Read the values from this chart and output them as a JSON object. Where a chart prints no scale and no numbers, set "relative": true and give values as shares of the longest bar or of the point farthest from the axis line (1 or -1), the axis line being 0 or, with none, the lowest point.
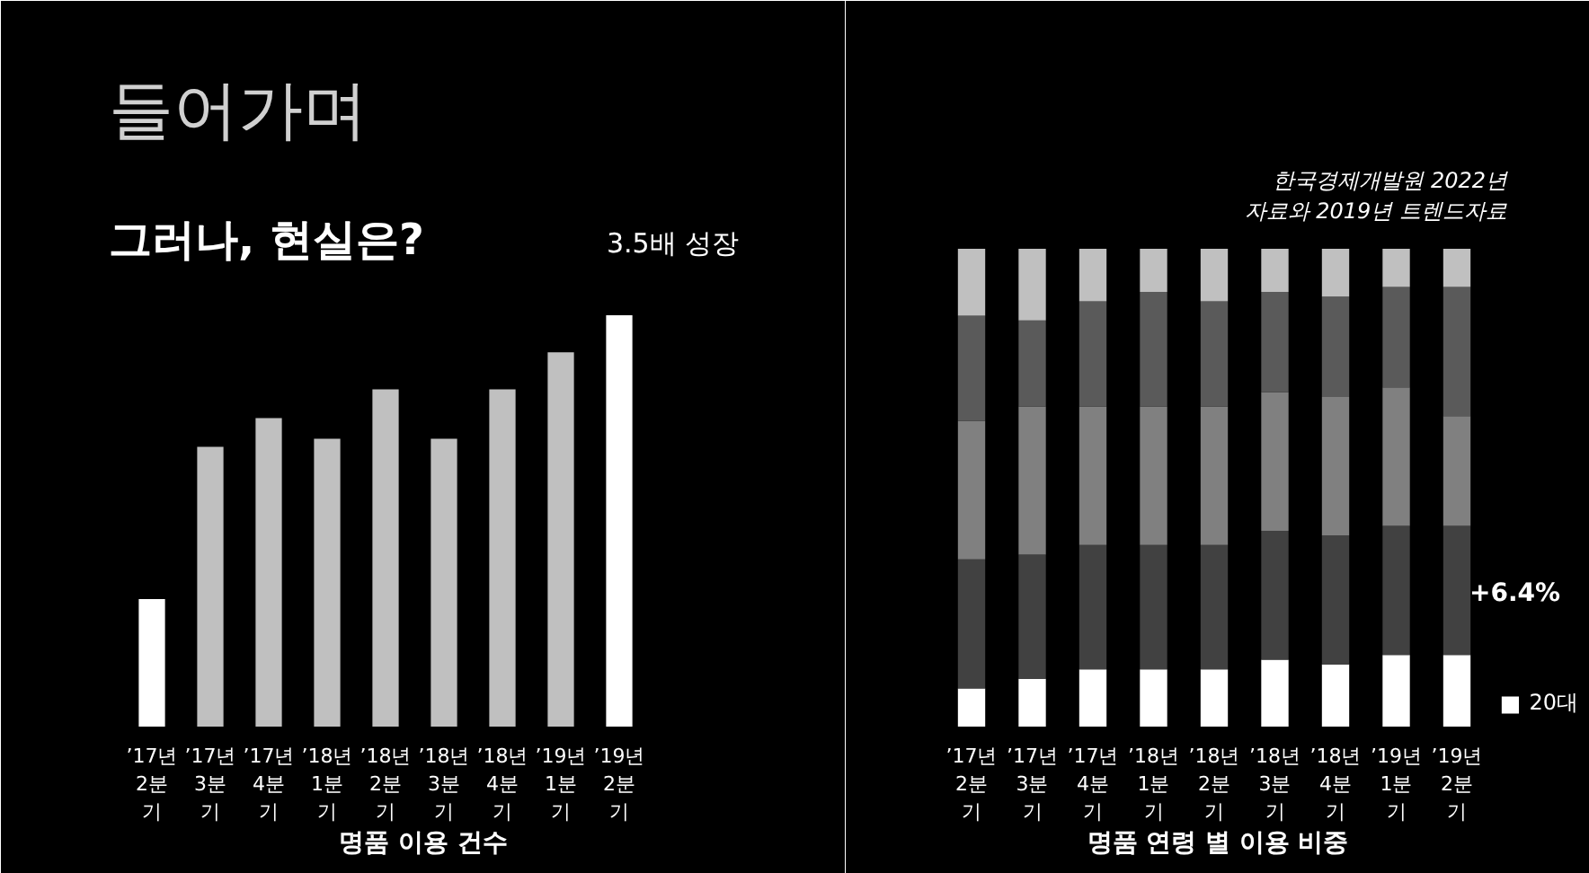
{
  "chart_data": [
    {
      "type": "bar",
      "title": "들어가며",
      "subtitle": "그러나, 현실은?",
      "xlabel": "명품 이용 건수",
      "relative": true,
      "categories": [
        "’17년 2분기",
        "’17년 3분기",
        "’17년 4분기",
        "’18년 1분기",
        "’18년 2분기",
        "’18년 3분기",
        "’18년 4분기",
        "’19년 1분기",
        "’19년 2분기"
      ],
      "values": [
        0.31,
        0.68,
        0.75,
        0.7,
        0.82,
        0.7,
        0.82,
        0.91,
        1.0
      ],
      "colors": [
        "#ffffff",
        "#c0c0c0",
        "#c0c0c0",
        "#c0c0c0",
        "#c0c0c0",
        "#c0c0c0",
        "#c0c0c0",
        "#c0c0c0",
        "#ffffff"
      ],
      "annotations": [
        "3.5배 성장"
      ]
    },
    {
      "type": "bar",
      "stacked": true,
      "relative": true,
      "xlabel": "명품 연령 별 이용 비중",
      "legend": "bottom right",
      "categories": [
        "’17년 2분기",
        "’17년 3분기",
        "’17년 4분기",
        "’18년 1분기",
        "’18년 2분기",
        "’18년 3분기",
        "’18년 4분기",
        "’19년 1분기",
        "’19년 2분기"
      ],
      "series": [
        {
          "name": "20대",
          "color": "#ffffff",
          "values": [
            0.08,
            0.1,
            0.12,
            0.12,
            0.12,
            0.14,
            0.13,
            0.15,
            0.15
          ]
        },
        {
          "color": "#414141",
          "values": [
            0.27,
            0.26,
            0.26,
            0.26,
            0.26,
            0.27,
            0.27,
            0.27,
            0.27
          ]
        },
        {
          "color": "#808080",
          "values": [
            0.29,
            0.31,
            0.29,
            0.29,
            0.29,
            0.29,
            0.29,
            0.29,
            0.23
          ]
        },
        {
          "color": "#5a5a5a",
          "values": [
            0.22,
            0.18,
            0.22,
            0.24,
            0.22,
            0.21,
            0.21,
            0.21,
            0.27
          ]
        },
        {
          "color": "#c0c0c0",
          "values": [
            0.14,
            0.15,
            0.11,
            0.09,
            0.11,
            0.09,
            0.1,
            0.08,
            0.08
          ]
        }
      ],
      "annotations": [
        "한국경제개발원 2022년\n자료와 2019년 트렌드자료",
        "+6.4%"
      ]
    }
  ]
}
